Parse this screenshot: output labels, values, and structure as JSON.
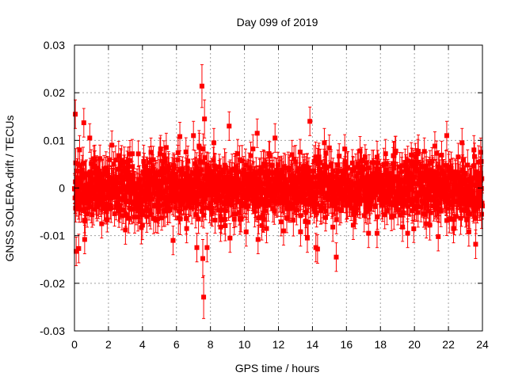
{
  "chart_data": {
    "type": "scatter",
    "title": "Day 099 of 2019",
    "xlabel": "GPS time / hours",
    "ylabel": "GNSS SOLERA-drift / TECUs",
    "xlim": [
      0,
      24
    ],
    "ylim": [
      -0.03,
      0.03
    ],
    "xticks": [
      0,
      2,
      4,
      6,
      8,
      10,
      12,
      14,
      16,
      18,
      20,
      22,
      24
    ],
    "yticks": [
      -0.03,
      -0.02,
      -0.01,
      0,
      0.01,
      0.02,
      0.03
    ],
    "ytick_labels": [
      "-0.03",
      "-0.02",
      "-0.01",
      "0",
      "0.01",
      "0.02",
      "0.03"
    ],
    "grid": true,
    "marker": "square",
    "color": "#ff0000",
    "series": [
      {
        "values_note_free": true,
        "points": [
          [
            0.05,
            0.0155,
            0.003
          ],
          [
            0.1,
            -0.0133,
            0.003
          ],
          [
            0.25,
            -0.0127,
            0.003
          ],
          [
            0.3,
            0.008,
            0.003
          ],
          [
            0.55,
            0.0137,
            0.003
          ],
          [
            0.6,
            -0.0108,
            0.003
          ],
          [
            0.9,
            0.0105,
            0.003
          ],
          [
            1.2,
            0.006,
            0.003
          ],
          [
            1.6,
            -0.0075,
            0.003
          ],
          [
            2.2,
            0.009,
            0.003
          ],
          [
            2.6,
            0.0068,
            0.003
          ],
          [
            3.0,
            -0.0088,
            0.003
          ],
          [
            3.4,
            0.0072,
            0.003
          ],
          [
            4.0,
            -0.0078,
            0.003
          ],
          [
            4.5,
            0.0075,
            0.003
          ],
          [
            4.9,
            -0.0065,
            0.003
          ],
          [
            5.4,
            0.0085,
            0.003
          ],
          [
            5.8,
            -0.011,
            0.003
          ],
          [
            6.2,
            0.0108,
            0.003
          ],
          [
            6.6,
            -0.0085,
            0.003
          ],
          [
            7.0,
            0.011,
            0.003
          ],
          [
            7.2,
            -0.0125,
            0.003
          ],
          [
            7.35,
            0.0085,
            0.003
          ],
          [
            7.5,
            0.0214,
            0.0045
          ],
          [
            7.55,
            -0.0148,
            0.004
          ],
          [
            7.6,
            -0.0229,
            0.0045
          ],
          [
            7.65,
            0.0145,
            0.004
          ],
          [
            7.8,
            -0.0125,
            0.003
          ],
          [
            8.2,
            0.0095,
            0.003
          ],
          [
            8.6,
            -0.0082,
            0.003
          ],
          [
            9.1,
            0.013,
            0.003
          ],
          [
            9.15,
            -0.0105,
            0.003
          ],
          [
            9.6,
            0.0072,
            0.003
          ],
          [
            10.1,
            -0.0092,
            0.003
          ],
          [
            10.5,
            0.0082,
            0.003
          ],
          [
            10.75,
            0.0115,
            0.003
          ],
          [
            10.8,
            -0.0108,
            0.003
          ],
          [
            11.3,
            -0.0085,
            0.003
          ],
          [
            11.8,
            0.0105,
            0.003
          ],
          [
            12.3,
            -0.009,
            0.003
          ],
          [
            12.8,
            0.007,
            0.003
          ],
          [
            13.3,
            -0.0092,
            0.003
          ],
          [
            13.7,
            -0.0105,
            0.003
          ],
          [
            13.85,
            0.014,
            0.003
          ],
          [
            14.2,
            -0.0125,
            0.003
          ],
          [
            14.3,
            -0.0128,
            0.003
          ],
          [
            14.7,
            0.0095,
            0.003
          ],
          [
            15.2,
            -0.0082,
            0.003
          ],
          [
            15.4,
            -0.0145,
            0.003
          ],
          [
            15.9,
            0.0082,
            0.003
          ],
          [
            16.4,
            -0.0078,
            0.003
          ],
          [
            16.8,
            0.0078,
            0.003
          ],
          [
            17.3,
            -0.0095,
            0.003
          ],
          [
            17.8,
            -0.0095,
            0.003
          ],
          [
            18.3,
            0.0072,
            0.003
          ],
          [
            18.8,
            0.0068,
            0.003
          ],
          [
            19.3,
            -0.0082,
            0.003
          ],
          [
            19.6,
            -0.0095,
            0.003
          ],
          [
            20.2,
            0.0072,
            0.003
          ],
          [
            20.7,
            -0.0075,
            0.003
          ],
          [
            21.2,
            0.0088,
            0.003
          ],
          [
            21.4,
            -0.0102,
            0.003
          ],
          [
            21.9,
            0.011,
            0.003
          ],
          [
            22.3,
            -0.0085,
            0.003
          ],
          [
            22.8,
            0.0095,
            0.003
          ],
          [
            23.2,
            -0.0092,
            0.003
          ],
          [
            23.5,
            0.008,
            0.003
          ],
          [
            23.6,
            -0.0118,
            0.003
          ],
          [
            23.9,
            0.0075,
            0.003
          ],
          [
            23.95,
            -0.0055,
            0.003
          ]
        ],
        "dense_band": {
          "x_range": [
            0,
            24
          ],
          "y_center": 0.0,
          "y_spread": 0.0055,
          "error": 0.003
        }
      }
    ]
  }
}
